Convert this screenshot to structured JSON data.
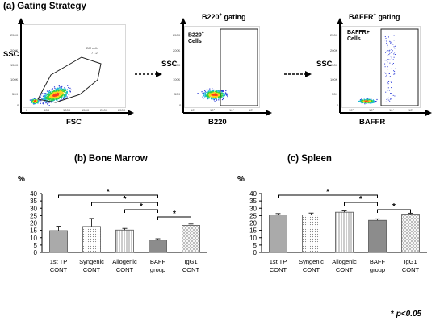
{
  "panel_a": {
    "title": "(a) Gating Strategy",
    "plot1": {
      "ylabel": "SSC",
      "xlabel": "FSC",
      "gate_label": "BM cells",
      "gate_value": "77.2",
      "yticks": [
        "250K",
        "200K",
        "150K",
        "100K",
        "50K",
        "0"
      ],
      "xticks": [
        "0",
        "50K",
        "100K",
        "150K",
        "200K",
        "250K"
      ]
    },
    "plot2": {
      "title_main": "B220",
      "title_sup": "+",
      "title_rest": " gating",
      "ylabel": "SSC",
      "xlabel": "B220",
      "gate_label_main": "B220",
      "gate_label_sup": "+",
      "gate_label_line2": "Cells",
      "yticks": [
        "250K",
        "200K",
        "150K",
        "100K",
        "50K",
        "0"
      ],
      "xticks": [
        "10²",
        "10³",
        "10⁴",
        "10⁵"
      ]
    },
    "plot3": {
      "title_main": "BAFFR",
      "title_sup": "+",
      "title_rest": " gating",
      "ylabel": "SSC",
      "xlabel": "BAFFR",
      "gate_label": "BAFFR+",
      "gate_label_line2": "Cells",
      "yticks": [
        "250K",
        "200K",
        "150K",
        "100K",
        "50K",
        "0"
      ],
      "xticks": [
        "10²",
        "10³",
        "10⁴",
        "10⁵"
      ]
    }
  },
  "significance_note": {
    "star": "*",
    "text": "p<0.05"
  },
  "colors": {
    "group1": "#aaaaaa",
    "bar_edge": "#555555",
    "baff": "#8c8c8c"
  },
  "chart_data": [
    {
      "type": "bar",
      "title": "(b) Bone Marrow",
      "ylabel": "%",
      "ylim": [
        0,
        40
      ],
      "yticks": [
        0,
        5,
        10,
        15,
        20,
        25,
        30,
        35,
        40
      ],
      "categories": [
        "1st TP CONT",
        "Syngenic CONT",
        "Allogenic CONT",
        "BAFF group",
        "IgG1 CONT"
      ],
      "categories_line1": [
        "1st TP",
        "Syngenic",
        "Allogenic",
        "BAFF",
        "IgG1"
      ],
      "categories_line2": [
        "CONT",
        "CONT",
        "CONT",
        "group",
        "CONT"
      ],
      "fills": [
        "solid",
        "dots",
        "vstripes",
        "solid-dark",
        "diag"
      ],
      "values": [
        14.8,
        17.6,
        15.2,
        8.4,
        18.4
      ],
      "errors": [
        3.0,
        5.5,
        1.1,
        0.9,
        0.9
      ],
      "significance": [
        {
          "from": 0,
          "to": 3,
          "label": "*"
        },
        {
          "from": 1,
          "to": 3,
          "label": "*"
        },
        {
          "from": 2,
          "to": 3,
          "label": "*"
        },
        {
          "from": 3,
          "to": 4,
          "label": "*"
        }
      ]
    },
    {
      "type": "bar",
      "title": "(c) Spleen",
      "ylabel": "%",
      "ylim": [
        0,
        40
      ],
      "yticks": [
        0,
        5,
        10,
        15,
        20,
        25,
        30,
        35,
        40
      ],
      "categories": [
        "1st TP CONT",
        "Syngenic CONT",
        "Allogenic CONT",
        "BAFF group",
        "IgG1 CONT"
      ],
      "categories_line1": [
        "1st TP",
        "Syngenic",
        "Allogenic",
        "BAFF",
        "IgG1"
      ],
      "categories_line2": [
        "CONT",
        "CONT",
        "CONT",
        "group",
        "CONT"
      ],
      "fills": [
        "solid",
        "dots",
        "vstripes",
        "solid-dark",
        "diag"
      ],
      "values": [
        25.5,
        25.5,
        27.3,
        21.8,
        26.0
      ],
      "errors": [
        0.9,
        1.2,
        0.9,
        1.0,
        0.6
      ],
      "significance": [
        {
          "from": 0,
          "to": 3,
          "label": "*"
        },
        {
          "from": 2,
          "to": 3,
          "label": "*"
        },
        {
          "from": 3,
          "to": 4,
          "label": "*"
        }
      ]
    }
  ]
}
